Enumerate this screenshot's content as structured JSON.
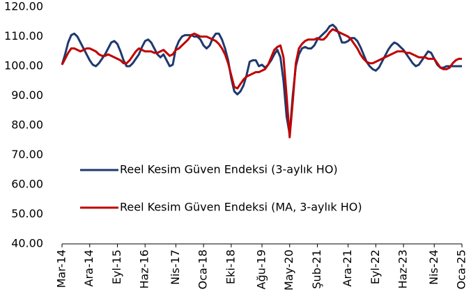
{
  "chart_data": {
    "type": "line",
    "categories": [
      "Mar-14",
      null,
      null,
      null,
      null,
      null,
      null,
      null,
      null,
      "Ara-14",
      null,
      null,
      null,
      null,
      null,
      null,
      null,
      null,
      "Eyl-15",
      null,
      null,
      null,
      null,
      null,
      null,
      null,
      null,
      "Haz-16",
      null,
      null,
      null,
      null,
      null,
      null,
      null,
      null,
      null,
      "Nis-17",
      null,
      null,
      null,
      null,
      null,
      null,
      null,
      null,
      "Oca-18",
      null,
      null,
      null,
      null,
      null,
      null,
      null,
      null,
      "Eki-18",
      null,
      null,
      null,
      null,
      null,
      null,
      null,
      null,
      null,
      "Ağu-19",
      null,
      null,
      null,
      null,
      null,
      null,
      null,
      null,
      "May-20",
      null,
      null,
      null,
      null,
      null,
      null,
      null,
      null,
      "Şub-21",
      null,
      null,
      null,
      null,
      null,
      null,
      null,
      null,
      null,
      "Ara-21",
      null,
      null,
      null,
      null,
      null,
      null,
      null,
      null,
      "Eyl-22",
      null,
      null,
      null,
      null,
      null,
      null,
      null,
      null,
      "Haz-23",
      null,
      null,
      null,
      null,
      null,
      null,
      null,
      null,
      null,
      "Nis-24",
      null,
      null,
      null,
      null,
      null,
      null,
      null,
      null,
      "Oca-25"
    ],
    "series": [
      {
        "name": "Reel Kesim Güven Endeksi (3-aylık HO)",
        "color": "#1f3a6e",
        "values": [
          100.5,
          104,
          108,
          110.5,
          111,
          110,
          108,
          106,
          104,
          102,
          100.5,
          100,
          101,
          102.5,
          104,
          106,
          108,
          108.5,
          107.5,
          105,
          102,
          100,
          100,
          101,
          102.5,
          104,
          106.5,
          108.5,
          109,
          108,
          106,
          104,
          103,
          104,
          102,
          100,
          100.5,
          106,
          108.5,
          110,
          110.5,
          110.5,
          110.5,
          110,
          110,
          109,
          107,
          106,
          107,
          109.5,
          111,
          111,
          109,
          106,
          102,
          96,
          91.5,
          90.5,
          91.5,
          93.5,
          97,
          101.5,
          102,
          102,
          100,
          100.5,
          99.5,
          100.5,
          102,
          104,
          105.5,
          103,
          95,
          83,
          77,
          90,
          100,
          104,
          106,
          106.5,
          106,
          106,
          107,
          109,
          110,
          111,
          112,
          113.5,
          114,
          113,
          111,
          108,
          108,
          108.5,
          109.5,
          109.5,
          108.5,
          106.5,
          104,
          101.5,
          100,
          99,
          98.5,
          99.5,
          101.5,
          103.5,
          105.5,
          107,
          108,
          107.5,
          106.5,
          105.5,
          104,
          102.5,
          101,
          100,
          100.5,
          102,
          103.5,
          105,
          104.5,
          102.5,
          100.5,
          99.5,
          99.5,
          100,
          100,
          100,
          100,
          100,
          100
        ]
      },
      {
        "name": "Reel Kesim Güven Endeksi (MA, 3-aylık HO)",
        "color": "#c00000",
        "values": [
          100.5,
          102.5,
          104.5,
          106,
          106,
          105.5,
          105,
          105.5,
          106,
          106,
          105.5,
          105,
          104,
          103.5,
          103.5,
          104,
          103.5,
          103,
          102.5,
          102,
          101,
          101,
          102,
          103.5,
          105,
          106,
          105.5,
          105,
          105,
          105,
          104.5,
          104.5,
          105,
          105.5,
          104.5,
          103.5,
          104,
          105.5,
          106,
          107,
          108,
          109,
          110.5,
          111,
          110.5,
          110,
          110,
          110,
          109.5,
          109,
          108.5,
          107.5,
          106,
          104,
          101,
          97,
          93,
          92.5,
          94,
          95.5,
          96.5,
          97,
          97.5,
          98,
          98,
          98.5,
          99,
          100.5,
          103,
          105.5,
          106.5,
          107,
          103,
          90,
          76,
          88,
          101,
          106,
          107.5,
          108.5,
          109,
          109,
          109,
          109.5,
          109,
          109,
          110,
          111.5,
          112.5,
          112,
          111.5,
          111,
          110.5,
          110,
          109,
          107.5,
          106,
          104,
          102.5,
          101.5,
          101,
          101,
          101.5,
          102,
          102.5,
          103,
          103.5,
          104,
          104.5,
          105,
          105,
          105,
          104.5,
          104.5,
          104,
          103.5,
          103,
          103,
          103,
          102.5,
          102.5,
          102.5,
          101,
          99.5,
          99,
          99,
          99.5,
          101,
          102,
          102.5,
          102.5
        ]
      }
    ],
    "ylim": [
      40,
      120
    ],
    "yticks": [
      {
        "value": 40,
        "label": "40.00"
      },
      {
        "value": 50,
        "label": "50.00"
      },
      {
        "value": 60,
        "label": "60.00"
      },
      {
        "value": 70,
        "label": "70.00"
      },
      {
        "value": 80,
        "label": "80.00"
      },
      {
        "value": 90,
        "label": "90.00"
      },
      {
        "value": 100,
        "label": "100.00"
      },
      {
        "value": 110,
        "label": "110.00"
      },
      {
        "value": 120,
        "label": "120.00"
      }
    ],
    "grid": false
  }
}
